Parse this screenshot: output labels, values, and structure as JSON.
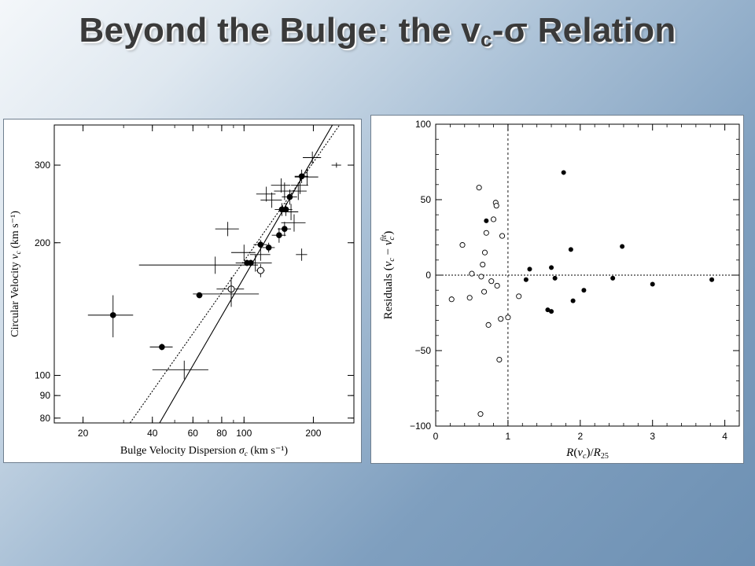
{
  "slide": {
    "title_main": "Beyond the Bulge: the v",
    "title_sub": "c",
    "title_sep": "-",
    "title_sigma": "σ",
    "title_rest": " Relation"
  },
  "chart_data": [
    {
      "type": "scatter",
      "xlabel": "Bulge Velocity Dispersion σc (km s⁻¹)",
      "ylabel": "Circular Velocity vc (km s⁻¹)",
      "x_scale": "log",
      "y_scale": "log",
      "xlim": [
        15,
        300
      ],
      "ylim": [
        78,
        370
      ],
      "x_ticks": [
        20,
        40,
        60,
        80,
        100,
        200
      ],
      "y_ticks": [
        80,
        90,
        100,
        200,
        300
      ],
      "grid": false,
      "lines": [
        {
          "style": "solid",
          "points": [
            [
              43,
              78
            ],
            [
              242,
              370
            ]
          ]
        },
        {
          "style": "dotted",
          "points": [
            [
              32,
              78
            ],
            [
              260,
              370
            ]
          ]
        }
      ],
      "series": [
        {
          "marker": "filled circle",
          "points": [
            {
              "x": 27,
              "y": 137,
              "xerr": 6,
              "yerr": 15
            },
            {
              "x": 44,
              "y": 116,
              "xerr": 5,
              "yerr": 2
            },
            {
              "x": 64,
              "y": 152,
              "xerr": 2,
              "yerr": 2
            },
            {
              "x": 103,
              "y": 180,
              "xerr": 4,
              "yerr": 3
            },
            {
              "x": 107,
              "y": 180,
              "xerr": 6,
              "yerr": 3
            },
            {
              "x": 118,
              "y": 198,
              "xerr": 8,
              "yerr": 5
            },
            {
              "x": 128,
              "y": 195,
              "xerr": 8,
              "yerr": 5
            },
            {
              "x": 142,
              "y": 208,
              "xerr": 10,
              "yerr": 8
            },
            {
              "x": 146,
              "y": 238,
              "xerr": 10,
              "yerr": 8
            },
            {
              "x": 150,
              "y": 215,
              "xerr": 10,
              "yerr": 8
            },
            {
              "x": 152,
              "y": 238,
              "xerr": 10,
              "yerr": 8
            },
            {
              "x": 158,
              "y": 254,
              "xerr": 12,
              "yerr": 10
            },
            {
              "x": 178,
              "y": 283,
              "xerr": 12,
              "yerr": 10
            }
          ]
        },
        {
          "marker": "open circle",
          "points": [
            {
              "x": 88,
              "y": 157,
              "xerr": 12,
              "yerr": 10
            },
            {
              "x": 118,
              "y": 173,
              "xerr": 5,
              "yerr": 6
            }
          ]
        },
        {
          "marker": "none (error bars only)",
          "points": [
            {
              "x": 55,
              "y": 103,
              "xerr": 15,
              "yerr": 5
            },
            {
              "x": 75,
              "y": 178,
              "xerr": 40,
              "yerr": 8
            },
            {
              "x": 85,
              "y": 215,
              "xerr": 10,
              "yerr": 8
            },
            {
              "x": 88,
              "y": 153,
              "xerr": 28,
              "yerr": 10
            },
            {
              "x": 100,
              "y": 190,
              "xerr": 12,
              "yerr": 8
            },
            {
              "x": 112,
              "y": 180,
              "xerr": 20,
              "yerr": 8
            },
            {
              "x": 118,
              "y": 188,
              "xerr": 12,
              "yerr": 6
            },
            {
              "x": 125,
              "y": 258,
              "xerr": 12,
              "yerr": 10
            },
            {
              "x": 132,
              "y": 250,
              "xerr": 14,
              "yerr": 10
            },
            {
              "x": 145,
              "y": 270,
              "xerr": 14,
              "yerr": 10
            },
            {
              "x": 150,
              "y": 262,
              "xerr": 15,
              "yerr": 12
            },
            {
              "x": 160,
              "y": 235,
              "xerr": 12,
              "yerr": 10
            },
            {
              "x": 165,
              "y": 222,
              "xerr": 20,
              "yerr": 10
            },
            {
              "x": 172,
              "y": 262,
              "xerr": 15,
              "yerr": 12
            },
            {
              "x": 175,
              "y": 270,
              "xerr": 15,
              "yerr": 12
            },
            {
              "x": 178,
              "y": 188,
              "xerr": 10,
              "yerr": 6
            },
            {
              "x": 188,
              "y": 282,
              "xerr": 22,
              "yerr": 12
            },
            {
              "x": 198,
              "y": 312,
              "xerr": 18,
              "yerr": 10
            },
            {
              "x": 252,
              "y": 300,
              "xerr": 12,
              "yerr": 4
            }
          ]
        }
      ]
    },
    {
      "type": "scatter",
      "xlabel": "R(vc)/R25",
      "ylabel": "Residuals (vc − vc^fit)",
      "xlim": [
        0,
        4.2
      ],
      "ylim": [
        -100,
        100
      ],
      "x_ticks": [
        0,
        1,
        2,
        3,
        4
      ],
      "y_ticks": [
        -100,
        -50,
        0,
        50,
        100
      ],
      "grid": false,
      "reference_lines": [
        {
          "style": "dashed",
          "orientation": "horizontal",
          "value": 0
        },
        {
          "style": "dashed",
          "orientation": "vertical",
          "value": 1
        }
      ],
      "series": [
        {
          "marker": "filled circle",
          "x": [
            0.7,
            1.25,
            1.3,
            1.55,
            1.6,
            1.6,
            1.65,
            1.77,
            1.87,
            1.9,
            2.05,
            2.45,
            2.58,
            3.0,
            3.82
          ],
          "y": [
            36,
            -3,
            4,
            -23,
            5,
            -24,
            -2,
            68,
            17,
            -17,
            -10,
            -2,
            19,
            -6,
            -3
          ]
        },
        {
          "marker": "open circle",
          "x": [
            0.22,
            0.37,
            0.47,
            0.5,
            0.6,
            0.62,
            0.63,
            0.65,
            0.67,
            0.68,
            0.7,
            0.73,
            0.77,
            0.8,
            0.83,
            0.84,
            0.85,
            0.88,
            0.9,
            0.92,
            1.0,
            1.15
          ],
          "y": [
            -16,
            20,
            -15,
            1,
            58,
            -92,
            -1,
            7,
            -11,
            15,
            28,
            -33,
            -4,
            37,
            48,
            46,
            -7,
            -56,
            -29,
            26,
            -28,
            -14
          ]
        }
      ]
    }
  ]
}
